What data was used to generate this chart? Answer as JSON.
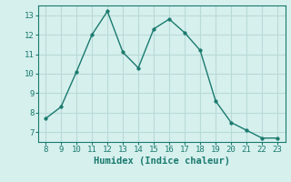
{
  "x": [
    8,
    9,
    10,
    11,
    12,
    13,
    14,
    15,
    16,
    17,
    18,
    19,
    20,
    21,
    22,
    23
  ],
  "y": [
    7.7,
    8.3,
    10.1,
    12.0,
    13.2,
    11.1,
    10.3,
    12.3,
    12.8,
    12.1,
    11.2,
    8.6,
    7.5,
    7.1,
    6.7,
    6.7
  ],
  "line_color": "#1a7a6e",
  "marker": "o",
  "marker_size": 2.5,
  "bg_color": "#d6f0ee",
  "grid_color": "#b8dbd8",
  "xlabel": "Humidex (Indice chaleur)",
  "xlim": [
    7.5,
    23.5
  ],
  "ylim": [
    6.5,
    13.5
  ],
  "yticks": [
    7,
    8,
    9,
    10,
    11,
    12,
    13
  ],
  "xticks": [
    8,
    9,
    10,
    11,
    12,
    13,
    14,
    15,
    16,
    17,
    18,
    19,
    20,
    21,
    22,
    23
  ]
}
